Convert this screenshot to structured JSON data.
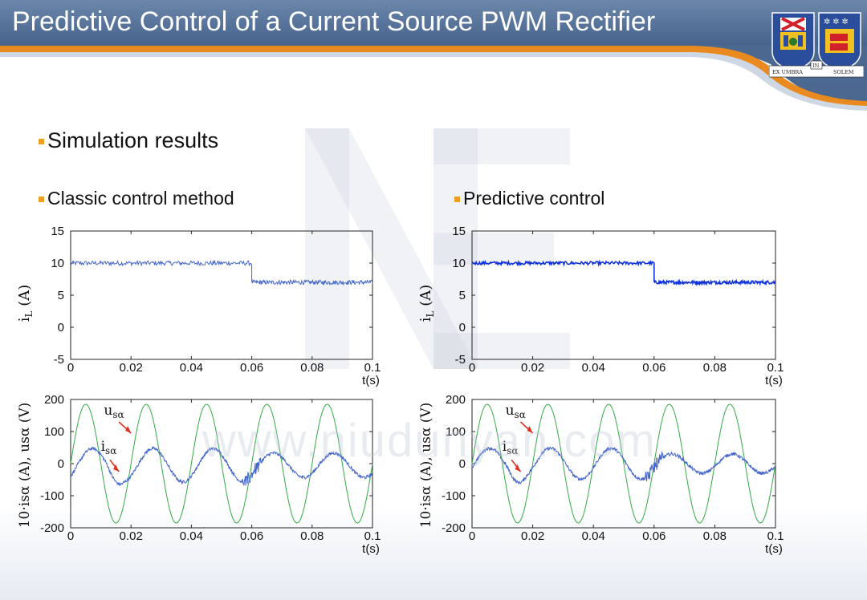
{
  "slide": {
    "title": "Predictive Control of a Current Source PWM Rectifier",
    "section_heading": "Simulation results",
    "left_heading": "Classic control method",
    "right_heading": "Predictive control",
    "watermark_text": "www.niudunyan.com",
    "logo": {
      "banner_left": "EX UMBRA",
      "banner_mid": "IN",
      "banner_right": "SOLEM"
    }
  },
  "colors": {
    "accent": "#f0a020",
    "title_bg": "#4f6d96",
    "trace_blue": "#4466cc",
    "trace_blue_strong": "#1133dd",
    "trace_green": "#33aa44",
    "arrow_red": "#e03020"
  },
  "chart_data": [
    {
      "panel": "classic-dc-current",
      "type": "line",
      "ylabel_main": "i",
      "ylabel_sub": "L",
      "ylabel_unit": "(A)",
      "xlabel": "t(s)",
      "xlim": [
        0,
        0.1
      ],
      "ylim": [
        -5,
        15
      ],
      "xticks": [
        "0",
        "0.02",
        "0.04",
        "0.06",
        "0.08",
        "0.1"
      ],
      "yticks": [
        "15",
        "10",
        "5",
        "0",
        "-5"
      ],
      "series": [
        {
          "name": "iL",
          "color": "#4466cc",
          "steps": [
            {
              "t0": 0,
              "t1": 0.06,
              "level": 10.0,
              "ripple": 0.35
            },
            {
              "t0": 0.06,
              "t1": 0.1,
              "level": 7.0,
              "ripple": 0.35
            }
          ]
        }
      ]
    },
    {
      "panel": "predictive-dc-current",
      "type": "line",
      "ylabel_main": "i",
      "ylabel_sub": "L",
      "ylabel_unit": "(A)",
      "xlabel": "t(s)",
      "xlim": [
        0,
        0.1
      ],
      "ylim": [
        -5,
        15
      ],
      "xticks": [
        "0",
        "0.02",
        "0.04",
        "0.06",
        "0.08",
        "0.1"
      ],
      "yticks": [
        "15",
        "10",
        "5",
        "0",
        "-5"
      ],
      "series": [
        {
          "name": "iL",
          "color": "#1133dd",
          "steps": [
            {
              "t0": 0,
              "t1": 0.06,
              "level": 10.0,
              "ripple": 0.25
            },
            {
              "t0": 0.06,
              "t1": 0.1,
              "level": 7.0,
              "ripple": 0.25
            }
          ]
        }
      ]
    },
    {
      "panel": "classic-ac-waveforms",
      "type": "line",
      "ylabel": "10·isα (A), usα (V)",
      "xlabel": "t(s)",
      "xlim": [
        0,
        0.1
      ],
      "ylim": [
        -200,
        200
      ],
      "xticks": [
        "0",
        "0.02",
        "0.04",
        "0.06",
        "0.08",
        "0.1"
      ],
      "yticks": [
        "200",
        "100",
        "0",
        "-100",
        "-200"
      ],
      "annotations": [
        {
          "text_main": "u",
          "text_sub": "sα"
        },
        {
          "text_main": "i",
          "text_sub": "sα"
        }
      ],
      "series": [
        {
          "name": "usα",
          "color": "#33aa44",
          "amplitude": 185,
          "frequency_hz": 50,
          "phase_deg": 0
        },
        {
          "name": "10·isα",
          "color": "#4466cc",
          "amplitude_before": 52,
          "amplitude_after": 38,
          "frequency_hz": 50,
          "phase_deg": -40,
          "step_time": 0.06,
          "offset": -5
        }
      ]
    },
    {
      "panel": "predictive-ac-waveforms",
      "type": "line",
      "ylabel": "10·isα (A), usα (V)",
      "xlabel": "t(s)",
      "xlim": [
        0,
        0.1
      ],
      "ylim": [
        -200,
        200
      ],
      "xticks": [
        "0",
        "0.02",
        "0.04",
        "0.06",
        "0.08",
        "0.1"
      ],
      "yticks": [
        "200",
        "100",
        "0",
        "-100",
        "-200"
      ],
      "annotations": [
        {
          "text_main": "u",
          "text_sub": "sα"
        },
        {
          "text_main": "i",
          "text_sub": "sα"
        }
      ],
      "series": [
        {
          "name": "usα",
          "color": "#33aa44",
          "amplitude": 185,
          "frequency_hz": 50,
          "phase_deg": 0
        },
        {
          "name": "10·isα",
          "color": "#4466cc",
          "amplitude_before": 48,
          "amplitude_after": 30,
          "frequency_hz": 50,
          "phase_deg": -15,
          "step_time": 0.06,
          "offset": 0
        }
      ]
    }
  ]
}
